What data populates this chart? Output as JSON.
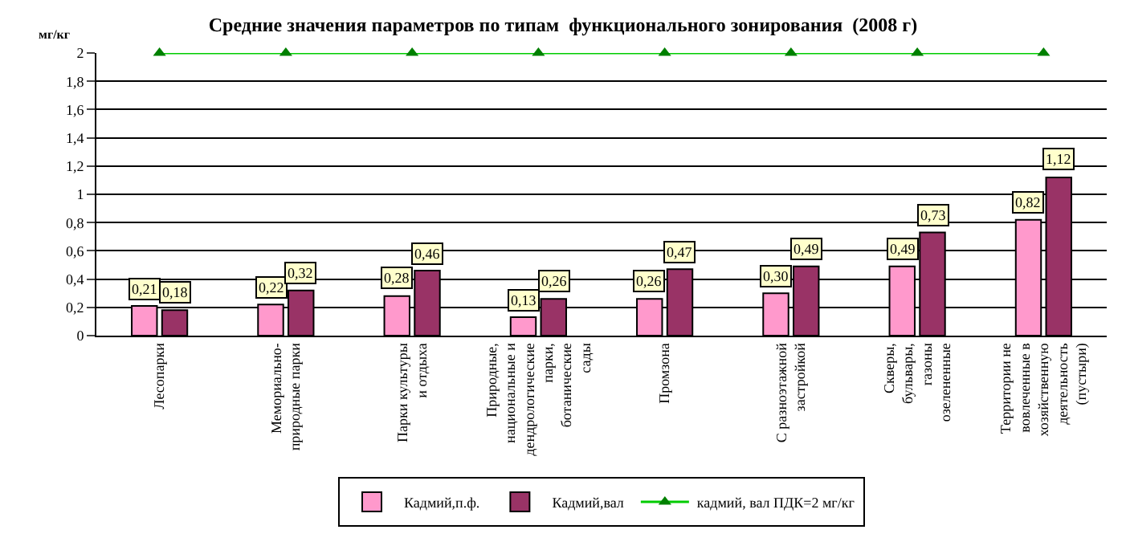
{
  "chart_data": {
    "type": "bar",
    "title": "Средние значения параметров по типам  функционального зонирования  (2008 г)",
    "ylabel": "мг/кг",
    "categories": [
      "Лесопарки",
      "Мемориально-природные парки",
      "Парки культуры и отдыха",
      "Природные, национальные и дендрологические парки, ботанические сады",
      "Промзона",
      "С разноэтажной застройкой",
      "Скверы, бульвары, газоны озелененные",
      "Территории не вовлеченные в хозяйственную деятельность (пустыри)"
    ],
    "series": [
      {
        "name": "Кадмий,п.ф.",
        "color": "#ff99cc",
        "values": [
          0.21,
          0.22,
          0.28,
          0.13,
          0.26,
          0.3,
          0.49,
          0.82
        ],
        "value_labels": [
          "0,21",
          "0,22",
          "0,28",
          "0,13",
          "0,26",
          "0,30",
          "0,49",
          "0,82"
        ]
      },
      {
        "name": "Кадмий,вал",
        "color": "#993366",
        "values": [
          0.18,
          0.32,
          0.46,
          0.26,
          0.47,
          0.49,
          0.73,
          1.12
        ],
        "value_labels": [
          "0,18",
          "0,32",
          "0,46",
          "0,26",
          "0,47",
          "0,49",
          "0,73",
          "1,12"
        ]
      },
      {
        "name": "кадмий, вал ПДК=2 мг/кг",
        "type": "line",
        "color": "#00cc00",
        "marker": "triangle",
        "values": [
          2,
          2,
          2,
          2,
          2,
          2,
          2,
          2
        ]
      }
    ],
    "ylim": [
      0,
      2
    ],
    "yticks": [
      0,
      {
        "value": 0.2,
        "label": "0,2"
      },
      {
        "value": 0.4,
        "label": "0,4"
      },
      {
        "value": 0.6,
        "label": "0,6"
      },
      {
        "value": 0.8,
        "label": "0,8"
      },
      1,
      {
        "value": 1.2,
        "label": "1,2"
      },
      {
        "value": 1.4,
        "label": "1,4"
      },
      {
        "value": 1.6,
        "label": "1,6"
      },
      {
        "value": 1.8,
        "label": "1,8"
      },
      2
    ],
    "grid": "y",
    "legend": "bottom"
  }
}
